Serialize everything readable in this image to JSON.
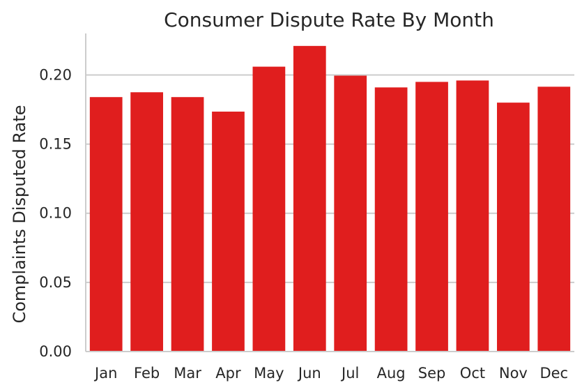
{
  "chart_data": {
    "type": "bar",
    "title": "Consumer Dispute Rate By Month",
    "xlabel": "",
    "ylabel": "Complaints Disputed Rate",
    "categories": [
      "Jan",
      "Feb",
      "Mar",
      "Apr",
      "May",
      "Jun",
      "Jul",
      "Aug",
      "Sep",
      "Oct",
      "Nov",
      "Dec"
    ],
    "values": [
      0.184,
      0.1875,
      0.184,
      0.1735,
      0.206,
      0.221,
      0.1995,
      0.191,
      0.195,
      0.196,
      0.18,
      0.1915
    ],
    "ylim": [
      0,
      0.23
    ],
    "yticks": [
      0.0,
      0.05,
      0.1,
      0.15,
      0.2
    ],
    "ytick_labels": [
      "0.00",
      "0.05",
      "0.10",
      "0.15",
      "0.20"
    ],
    "grid": "horizontal",
    "bar_color": "#e01e1e",
    "grid_color": "#cccccc"
  }
}
